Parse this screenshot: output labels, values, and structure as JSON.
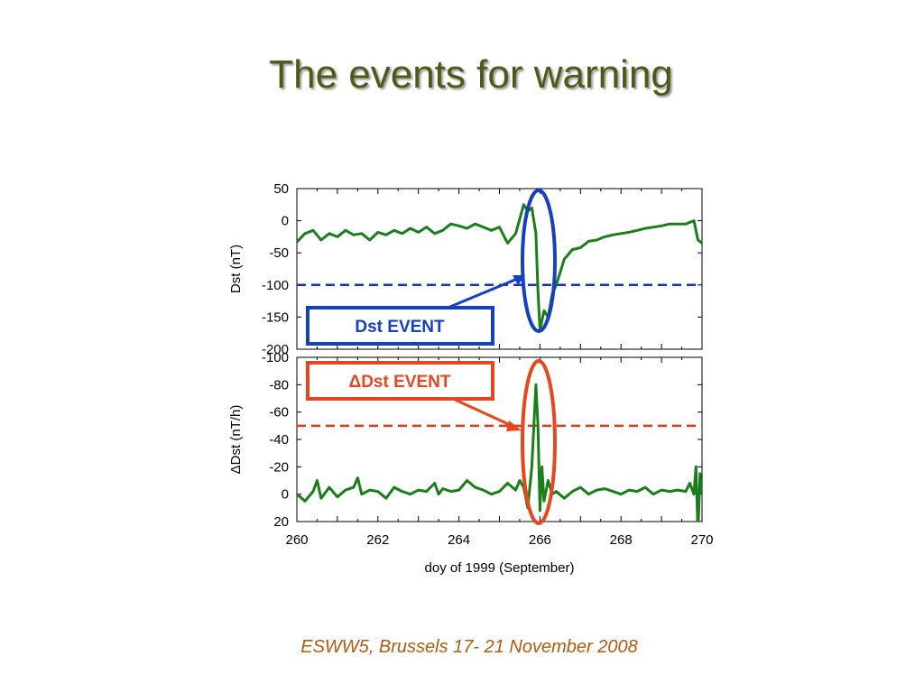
{
  "slide": {
    "title": "The events for warning",
    "footer": "ESWW5, Brussels 17- 21 November 2008"
  },
  "colors": {
    "series": "#1a7f1a",
    "dst_threshold": "#1a2fd0",
    "ddst_threshold": "#e03a1a",
    "dst_event_box": "#1540c0",
    "ddst_event_box": "#e8461c"
  },
  "chart_data": [
    {
      "type": "line",
      "panel": "top",
      "ylabel": "Dst (nT)",
      "ylim": [
        -200,
        50
      ],
      "yticks": [
        50,
        0,
        -50,
        -100,
        -150,
        -200
      ],
      "xlim": [
        260,
        270
      ],
      "threshold": -100,
      "annotation": "Dst EVENT",
      "series": [
        {
          "x": [
            260.0,
            260.2,
            260.4,
            260.6,
            260.8,
            261.0,
            261.2,
            261.4,
            261.6,
            261.8,
            262.0,
            262.2,
            262.4,
            262.6,
            262.8,
            263.0,
            263.2,
            263.4,
            263.6,
            263.8,
            264.0,
            264.2,
            264.4,
            264.6,
            264.8,
            265.0,
            265.2,
            265.4,
            265.6,
            265.7,
            265.8,
            265.9,
            265.95,
            266.0,
            266.1,
            266.2,
            266.3,
            266.4,
            266.5,
            266.6,
            266.8,
            267.0,
            267.2,
            267.4,
            267.6,
            267.8,
            268.0,
            268.2,
            268.4,
            268.6,
            268.8,
            269.0,
            269.2,
            269.4,
            269.6,
            269.8,
            269.9,
            270.0
          ],
          "y": [
            -33,
            -20,
            -15,
            -30,
            -20,
            -25,
            -15,
            -22,
            -20,
            -30,
            -18,
            -22,
            -15,
            -20,
            -12,
            -18,
            -10,
            -20,
            -15,
            -5,
            -8,
            -12,
            -5,
            -10,
            -15,
            -10,
            -35,
            -20,
            25,
            15,
            20,
            -20,
            -110,
            -170,
            -140,
            -150,
            -115,
            -100,
            -80,
            -60,
            -45,
            -42,
            -32,
            -30,
            -25,
            -22,
            -20,
            -18,
            -15,
            -12,
            -10,
            -8,
            -5,
            -5,
            -5,
            0,
            -30,
            -35
          ]
        }
      ]
    },
    {
      "type": "line",
      "panel": "bottom",
      "ylabel": "ΔDst (nT/h)",
      "ylim": [
        20,
        -100
      ],
      "yticks": [
        -100,
        -80,
        -60,
        -40,
        -20,
        0,
        20
      ],
      "xlim": [
        260,
        270
      ],
      "xticks": [
        260,
        262,
        264,
        266,
        268,
        270
      ],
      "xlabel": "doy of 1999 (September)",
      "threshold": -50,
      "annotation": "ΔDst EVENT",
      "series": [
        {
          "x": [
            260.0,
            260.2,
            260.4,
            260.5,
            260.6,
            260.8,
            261.0,
            261.2,
            261.4,
            261.5,
            261.6,
            261.8,
            262.0,
            262.2,
            262.4,
            262.6,
            262.8,
            263.0,
            263.2,
            263.4,
            263.5,
            263.6,
            263.8,
            264.0,
            264.2,
            264.4,
            264.6,
            264.8,
            265.0,
            265.2,
            265.4,
            265.5,
            265.6,
            265.7,
            265.8,
            265.9,
            265.95,
            266.0,
            266.05,
            266.1,
            266.2,
            266.3,
            266.4,
            266.6,
            266.8,
            267.0,
            267.2,
            267.4,
            267.6,
            267.8,
            268.0,
            268.2,
            268.4,
            268.6,
            268.8,
            269.0,
            269.2,
            269.4,
            269.6,
            269.7,
            269.8,
            269.85,
            269.9,
            269.95,
            270.0
          ],
          "y": [
            0,
            5,
            -2,
            -10,
            3,
            -5,
            2,
            -3,
            -5,
            -12,
            0,
            -3,
            -2,
            3,
            -5,
            -2,
            0,
            -3,
            -2,
            -8,
            0,
            -4,
            -2,
            -3,
            -10,
            -5,
            -3,
            0,
            -2,
            -8,
            -3,
            -10,
            -5,
            10,
            -20,
            -80,
            -50,
            12,
            -20,
            5,
            -10,
            0,
            -2,
            3,
            -2,
            -5,
            0,
            -3,
            -4,
            -2,
            0,
            -3,
            -2,
            -5,
            0,
            -3,
            -2,
            -3,
            -2,
            -8,
            0,
            -20,
            28,
            -15,
            0
          ]
        }
      ]
    }
  ]
}
